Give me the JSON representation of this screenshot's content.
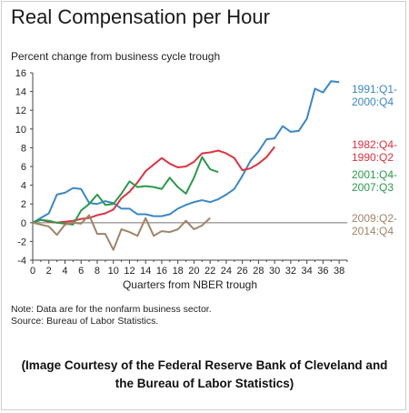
{
  "title": "Real Compensation per Hour",
  "notes": [
    "Note: Data are for the nonfarm business sector.",
    "Source: Bureau of Labor Statistics."
  ],
  "credit": [
    "(Image Courtesy of the Federal Reserve Bank of Cleveland and",
    "the Bureau of Labor Statistics)"
  ],
  "chart_data": {
    "type": "line",
    "title": "Real Compensation per Hour",
    "subtitle": "Percent change from business cycle trough",
    "xlabel": "Quarters from NBER trough",
    "ylabel": "",
    "xlim": [
      0,
      39
    ],
    "ylim": [
      -4,
      16
    ],
    "xticks": [
      0,
      2,
      4,
      6,
      8,
      10,
      12,
      14,
      16,
      18,
      20,
      22,
      24,
      26,
      28,
      30,
      32,
      34,
      36,
      38
    ],
    "yticks": [
      -4,
      -2,
      0,
      2,
      4,
      6,
      8,
      10,
      12,
      14,
      16
    ],
    "grid": false,
    "legend": "inline labels at right",
    "series": [
      {
        "name": "1991:Q1-2000:Q4",
        "label_lines": [
          "1991:Q1-",
          "2000:Q4"
        ],
        "color": "#3a87c8",
        "x": [
          0,
          1,
          2,
          3,
          4,
          5,
          6,
          7,
          8,
          9,
          10,
          11,
          12,
          13,
          14,
          15,
          16,
          17,
          18,
          19,
          20,
          21,
          22,
          23,
          24,
          25,
          26,
          27,
          28,
          29,
          30,
          31,
          32,
          33,
          34,
          35,
          36,
          37,
          38
        ],
        "y": [
          0,
          0.5,
          1.0,
          3.0,
          3.2,
          3.7,
          3.6,
          2.1,
          2.0,
          2.3,
          2.1,
          1.5,
          1.5,
          0.9,
          0.9,
          0.7,
          0.7,
          0.9,
          1.5,
          1.9,
          2.2,
          2.4,
          2.2,
          2.5,
          3.0,
          3.6,
          5.0,
          6.6,
          7.6,
          8.9,
          9.0,
          10.3,
          9.7,
          9.8,
          11.1,
          14.3,
          13.9,
          15.1,
          15.0
        ]
      },
      {
        "name": "1982:Q4-1990:Q2",
        "label_lines": [
          "1982:Q4-",
          "1990:Q2"
        ],
        "color": "#e0313f",
        "x": [
          0,
          1,
          2,
          3,
          4,
          5,
          6,
          7,
          8,
          9,
          10,
          11,
          12,
          13,
          14,
          15,
          16,
          17,
          18,
          19,
          20,
          21,
          22,
          23,
          24,
          25,
          26,
          27,
          28,
          29,
          30
        ],
        "y": [
          0,
          0.3,
          0.1,
          0.0,
          0.1,
          0.2,
          0.4,
          0.5,
          0.8,
          1.0,
          1.4,
          2.6,
          3.3,
          4.3,
          5.5,
          6.2,
          6.9,
          6.3,
          5.9,
          6.0,
          6.5,
          7.4,
          7.5,
          7.7,
          7.4,
          6.9,
          5.6,
          5.8,
          6.3,
          7.0,
          8.1
        ]
      },
      {
        "name": "2001:Q4-2007:Q3",
        "label_lines": [
          "2001:Q4-",
          "2007:Q3"
        ],
        "color": "#2b9a4a",
        "x": [
          0,
          1,
          2,
          3,
          4,
          5,
          6,
          7,
          8,
          9,
          10,
          11,
          12,
          13,
          14,
          15,
          16,
          17,
          18,
          19,
          20,
          21,
          22,
          23
        ],
        "y": [
          0,
          0.3,
          0.2,
          0.0,
          -0.1,
          -0.2,
          1.3,
          2.0,
          3.0,
          1.9,
          2.0,
          3.1,
          4.4,
          3.8,
          3.9,
          3.8,
          3.6,
          4.8,
          3.8,
          3.1,
          4.8,
          7.0,
          5.7,
          5.4
        ]
      },
      {
        "name": "2009:Q2-2014:Q4",
        "label_lines": [
          "2009:Q2-",
          "2014:Q4"
        ],
        "color": "#a08468",
        "x": [
          0,
          1,
          2,
          3,
          4,
          5,
          6,
          7,
          8,
          9,
          10,
          11,
          12,
          13,
          14,
          15,
          16,
          17,
          18,
          19,
          20,
          21,
          22
        ],
        "y": [
          0,
          -0.2,
          -0.4,
          -1.3,
          -0.2,
          0.0,
          -0.1,
          0.8,
          -1.2,
          -1.2,
          -2.9,
          -0.7,
          -1.0,
          -1.4,
          0.5,
          -1.4,
          -0.9,
          -1.0,
          -0.7,
          0.2,
          -0.7,
          -0.3,
          0.5
        ]
      }
    ]
  }
}
